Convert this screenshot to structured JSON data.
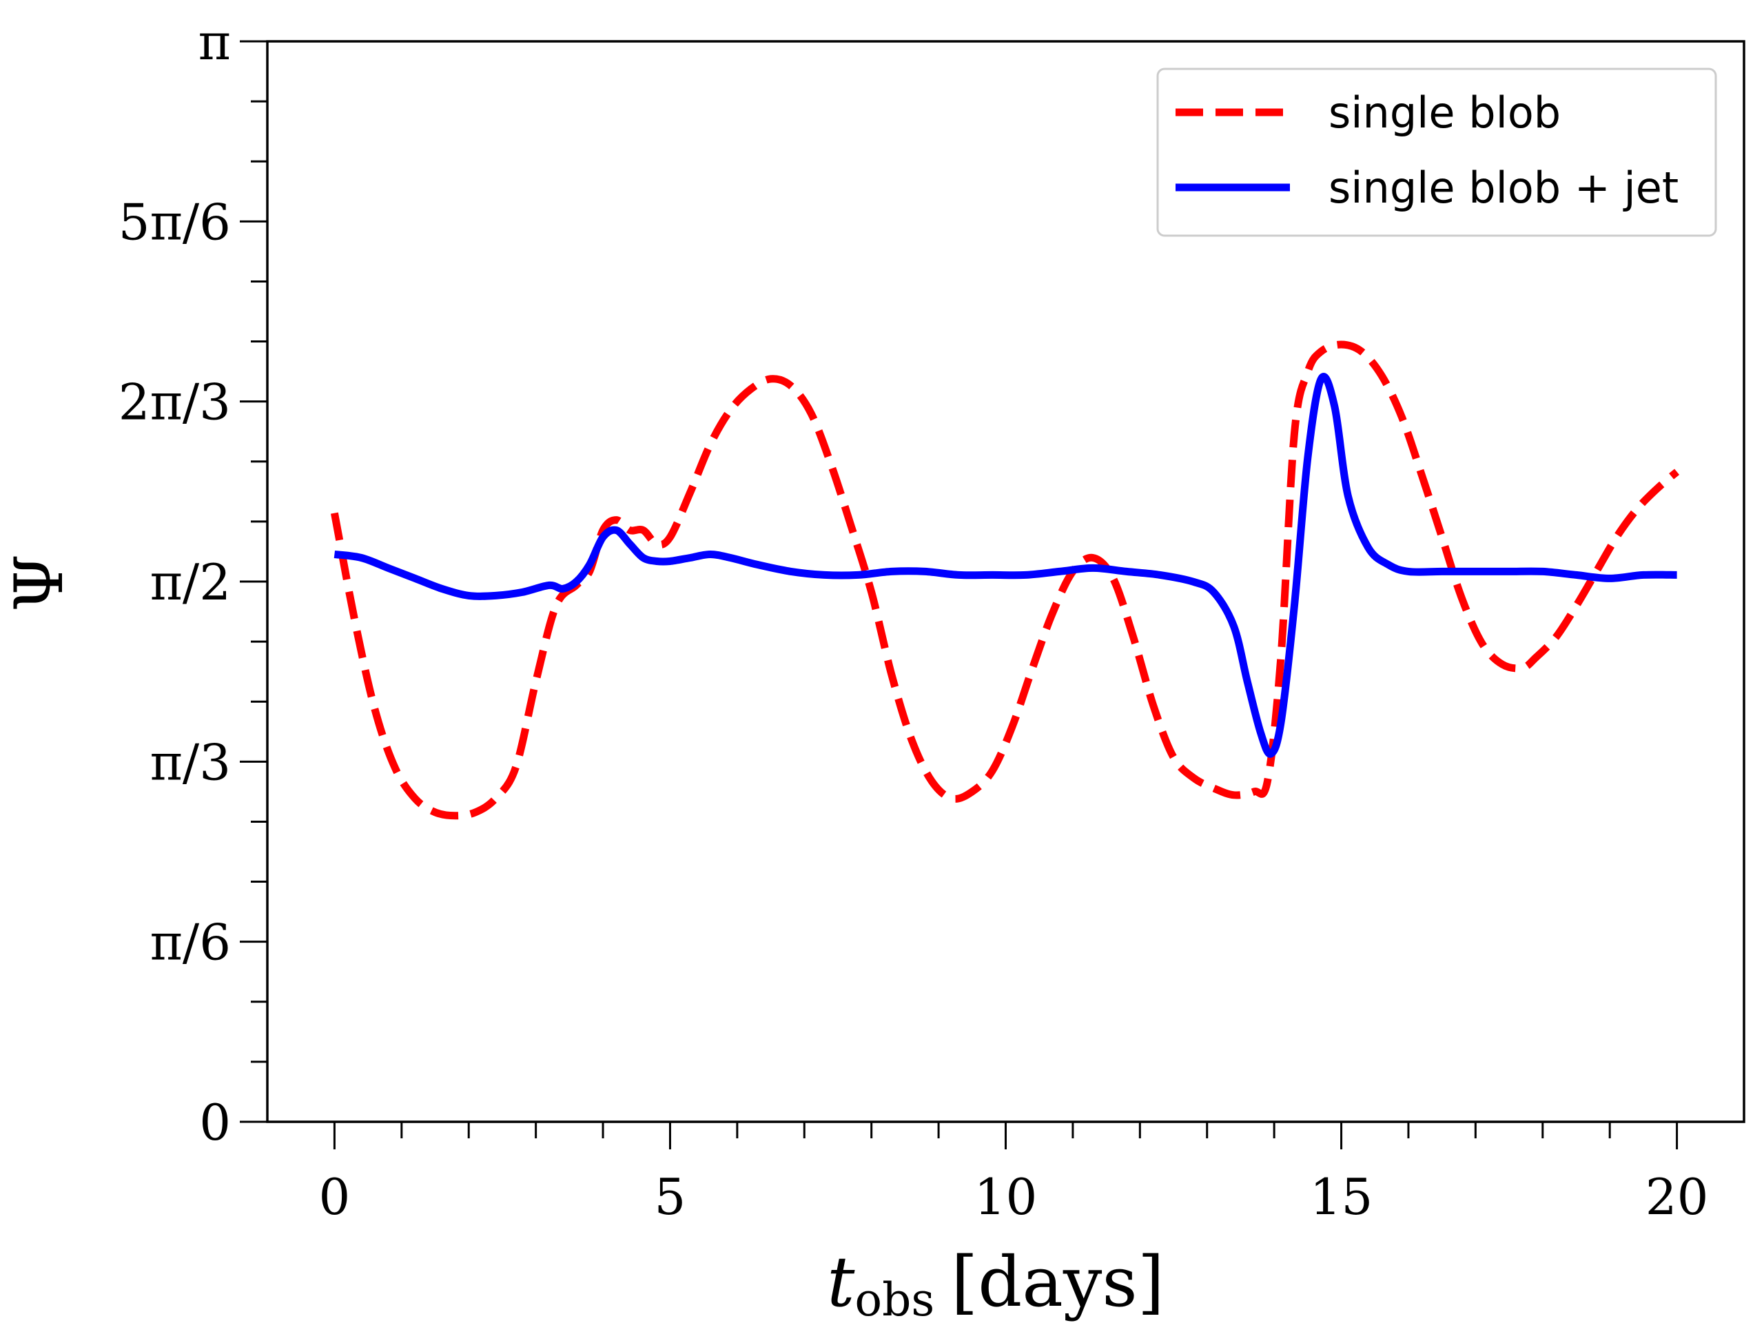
{
  "chart_data": {
    "type": "line",
    "title": "",
    "xlabel": "t_obs [days]",
    "xlabel_main": "t",
    "xlabel_sub": "obs",
    "xlabel_unit": "[days]",
    "ylabel": "Ψ",
    "xlim": [
      -1,
      21
    ],
    "ylim": [
      0,
      3.14159265
    ],
    "grid": false,
    "legend_position": "top-right",
    "x_ticks": [
      {
        "value": 0,
        "label": "0"
      },
      {
        "value": 5,
        "label": "5"
      },
      {
        "value": 10,
        "label": "10"
      },
      {
        "value": 15,
        "label": "15"
      },
      {
        "value": 20,
        "label": "20"
      }
    ],
    "y_ticks": [
      {
        "value": 0,
        "label": "0"
      },
      {
        "value": 0.5236,
        "label": "π/6"
      },
      {
        "value": 1.0472,
        "label": "π/3"
      },
      {
        "value": 1.5708,
        "label": "π/2"
      },
      {
        "value": 2.0944,
        "label": "2π/3"
      },
      {
        "value": 2.618,
        "label": "5π/6"
      },
      {
        "value": 3.1416,
        "label": "π"
      }
    ],
    "series": [
      {
        "name": "single blob",
        "color": "#ff0000",
        "style": "dashed",
        "x": [
          0,
          0.3,
          0.6,
          0.9,
          1.2,
          1.5,
          1.8,
          2.1,
          2.4,
          2.7,
          3.0,
          3.3,
          3.6,
          3.8,
          4.0,
          4.2,
          4.4,
          4.6,
          4.8,
          5.0,
          5.3,
          5.6,
          5.9,
          6.2,
          6.5,
          6.8,
          7.1,
          7.4,
          7.7,
          8.0,
          8.3,
          8.6,
          8.9,
          9.2,
          9.5,
          9.8,
          10.1,
          10.4,
          10.7,
          11.0,
          11.3,
          11.6,
          11.9,
          12.2,
          12.5,
          12.8,
          13.1,
          13.4,
          13.7,
          13.9,
          14.1,
          14.3,
          14.5,
          14.7,
          15.0,
          15.3,
          15.6,
          15.9,
          16.2,
          16.5,
          16.8,
          17.1,
          17.4,
          17.7,
          17.9,
          18.2,
          18.5,
          18.8,
          19.1,
          19.4,
          19.7,
          20.0
        ],
        "values": [
          1.77,
          1.46,
          1.2,
          1.03,
          0.94,
          0.9,
          0.89,
          0.9,
          0.94,
          1.03,
          1.28,
          1.5,
          1.56,
          1.6,
          1.72,
          1.75,
          1.72,
          1.72,
          1.68,
          1.7,
          1.83,
          1.97,
          2.07,
          2.13,
          2.16,
          2.14,
          2.06,
          1.91,
          1.73,
          1.54,
          1.3,
          1.11,
          0.99,
          0.94,
          0.96,
          1.02,
          1.15,
          1.32,
          1.48,
          1.6,
          1.64,
          1.58,
          1.41,
          1.21,
          1.06,
          1.0,
          0.97,
          0.95,
          0.96,
          0.99,
          1.35,
          2.0,
          2.18,
          2.24,
          2.26,
          2.24,
          2.17,
          2.05,
          1.88,
          1.7,
          1.52,
          1.39,
          1.33,
          1.32,
          1.35,
          1.41,
          1.5,
          1.6,
          1.7,
          1.78,
          1.84,
          1.89
        ]
      },
      {
        "name": "single blob + jet",
        "color": "#0000ff",
        "style": "solid",
        "x": [
          0,
          0.4,
          0.8,
          1.2,
          1.6,
          2.0,
          2.4,
          2.8,
          3.2,
          3.4,
          3.6,
          3.8,
          4.0,
          4.2,
          4.4,
          4.6,
          4.8,
          5.0,
          5.3,
          5.6,
          5.9,
          6.3,
          6.8,
          7.3,
          7.8,
          8.3,
          8.8,
          9.3,
          9.8,
          10.3,
          10.8,
          11.3,
          11.8,
          12.3,
          12.8,
          13.1,
          13.4,
          13.6,
          13.8,
          13.95,
          14.1,
          14.3,
          14.5,
          14.7,
          14.9,
          15.1,
          15.4,
          15.7,
          16.0,
          16.5,
          17.0,
          17.5,
          18.0,
          18.5,
          19.0,
          19.5,
          20.0
        ],
        "values": [
          1.65,
          1.64,
          1.61,
          1.58,
          1.55,
          1.53,
          1.53,
          1.54,
          1.56,
          1.55,
          1.57,
          1.62,
          1.7,
          1.72,
          1.68,
          1.64,
          1.63,
          1.63,
          1.64,
          1.65,
          1.64,
          1.62,
          1.6,
          1.59,
          1.59,
          1.6,
          1.6,
          1.59,
          1.59,
          1.59,
          1.6,
          1.61,
          1.6,
          1.59,
          1.57,
          1.54,
          1.44,
          1.28,
          1.13,
          1.07,
          1.16,
          1.5,
          1.93,
          2.16,
          2.08,
          1.82,
          1.67,
          1.62,
          1.6,
          1.6,
          1.6,
          1.6,
          1.6,
          1.59,
          1.58,
          1.59,
          1.59
        ]
      }
    ]
  }
}
